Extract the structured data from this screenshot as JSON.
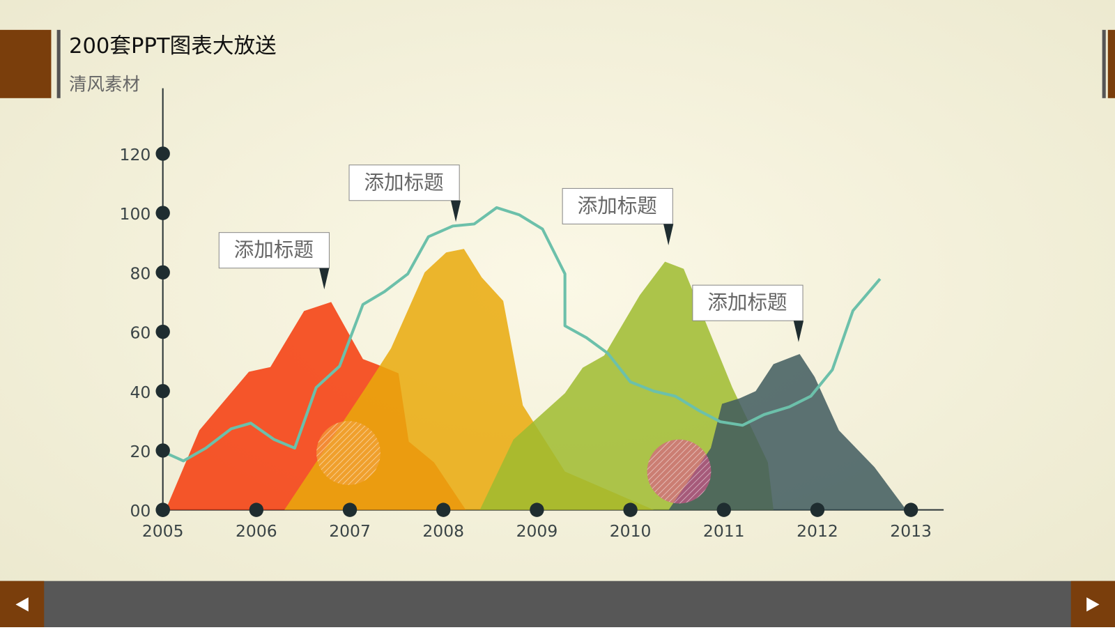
{
  "header": {
    "title": "200套PPT图表大放送",
    "subtitle": "清风素材"
  },
  "chart_data": {
    "type": "area",
    "xlim": [
      2005,
      2013.35
    ],
    "xticks": [
      2005,
      2006,
      2007,
      2008,
      2009,
      2010,
      2011,
      2012,
      2013
    ],
    "ylim": [
      0,
      142
    ],
    "yticks": [
      {
        "value": 0,
        "label": "00"
      },
      20,
      40,
      60,
      80,
      100,
      120
    ],
    "annotations": [
      "添加标题",
      "添加标题",
      "添加标题",
      "添加标题"
    ],
    "series": [
      {
        "type": "area",
        "color": "#f43a0a",
        "x": [
          2005.03,
          2005.39,
          2005.92,
          2006.15,
          2006.51,
          2006.8,
          2007.14,
          2007.29,
          2007.52,
          2007.63,
          2007.9,
          2008.24
        ],
        "values": [
          0,
          26.8,
          46.5,
          48.1,
          67,
          70,
          50.8,
          49,
          46,
          23,
          16,
          0
        ]
      },
      {
        "type": "area",
        "color": "#e9a90c",
        "x": [
          2006.3,
          2007.17,
          2007.44,
          2007.8,
          2008.03,
          2008.22,
          2008.41,
          2008.64,
          2008.85,
          2009.3,
          2010.25
        ],
        "values": [
          0,
          41.2,
          54.4,
          80,
          86.7,
          87.9,
          78.3,
          70.4,
          35.2,
          12.9,
          0
        ]
      },
      {
        "type": "area",
        "color": "#9fbb2f",
        "x": [
          2008.39,
          2008.75,
          2009.3,
          2009.49,
          2009.72,
          2010.1,
          2010.37,
          2010.57,
          2010.78,
          2011.09,
          2011.47,
          2011.53
        ],
        "values": [
          0,
          23.7,
          39.3,
          47.9,
          52,
          72.3,
          83.6,
          81.2,
          65.1,
          41.2,
          16,
          0
        ]
      },
      {
        "type": "area",
        "color": "#3f5a5e",
        "x": [
          2010.41,
          2010.86,
          2010.98,
          2011.17,
          2011.34,
          2011.53,
          2011.81,
          2011.97,
          2012.23,
          2012.61,
          2012.95
        ],
        "values": [
          0,
          20.8,
          35.7,
          37.6,
          40,
          49.1,
          52.5,
          44.8,
          26.8,
          14.4,
          0
        ]
      },
      {
        "type": "line",
        "color": "#6cc0aa",
        "x": [
          2005,
          2005.22,
          2005.46,
          2005.73,
          2005.94,
          2006.19,
          2006.41,
          2006.64,
          2006.89,
          2007.14,
          2007.37,
          2007.62,
          2007.84,
          2008.1,
          2008.33,
          2008.57,
          2008.81,
          2009.06,
          2009.3,
          2009.3,
          2009.53,
          2009.76,
          2010.0,
          2010.25,
          2010.48,
          2010.73,
          2010.96,
          2011.2,
          2011.43,
          2011.7,
          2011.93,
          2012.16,
          2012.38,
          2012.67
        ],
        "values": [
          19.6,
          16.5,
          20.8,
          27.3,
          29.2,
          23.7,
          20.8,
          41.2,
          48.4,
          69.2,
          73.5,
          79.5,
          92,
          95.6,
          96.3,
          101.8,
          99.4,
          94.6,
          79.5,
          62,
          58,
          52.7,
          43.1,
          40,
          38.3,
          33.5,
          29.7,
          28.5,
          32.1,
          34.7,
          38.3,
          47.2,
          67.1,
          77.8
        ]
      }
    ]
  }
}
